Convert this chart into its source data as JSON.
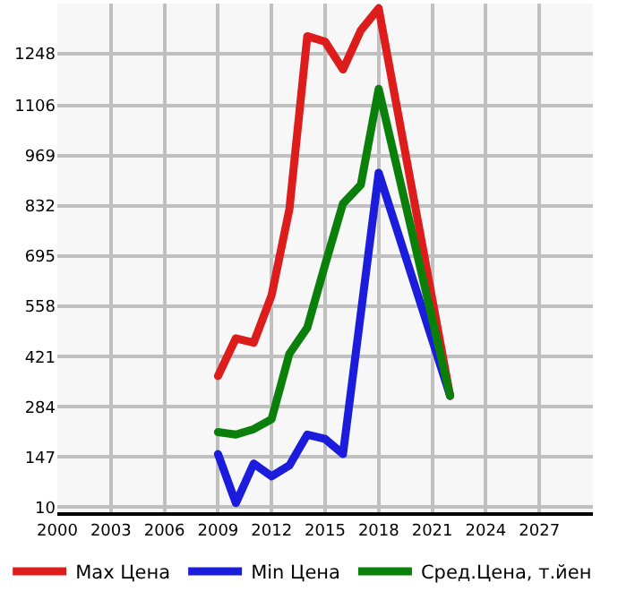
{
  "chart_data": {
    "type": "line",
    "xlim": [
      2000,
      2030
    ],
    "xticks": [
      2000,
      2003,
      2006,
      2009,
      2012,
      2015,
      2018,
      2021,
      2024,
      2027
    ],
    "ylim": [
      -4,
      1385
    ],
    "yticks": [
      10,
      147,
      284,
      421,
      558,
      695,
      832,
      969,
      1106,
      1248
    ],
    "grid": true,
    "legend": "bottom",
    "marker": "none",
    "line_style": "solid",
    "series": [
      {
        "name": "Max Цена",
        "color": "#dd1c1c",
        "x": [
          2009,
          2010,
          2011,
          2012,
          2013,
          2014,
          2015,
          2016,
          2017,
          2018,
          2022
        ],
        "values": [
          368,
          471,
          459,
          588,
          824,
          1296,
          1281,
          1205,
          1312,
          1372,
          314
        ]
      },
      {
        "name": "Min Цена",
        "color": "#1c1cdd",
        "x": [
          2009,
          2010,
          2011,
          2012,
          2013,
          2014,
          2015,
          2016,
          2018,
          2022
        ],
        "values": [
          155,
          21,
          129,
          94,
          124,
          208,
          196,
          155,
          923,
          314
        ]
      },
      {
        "name": "Сред.Цена, т.йен",
        "color": "#0a800a",
        "x": [
          2009,
          2010,
          2011,
          2012,
          2013,
          2014,
          2015,
          2016,
          2017,
          2018,
          2022
        ],
        "values": [
          215,
          208,
          223,
          250,
          429,
          500,
          672,
          839,
          890,
          1152,
          314
        ]
      }
    ]
  }
}
